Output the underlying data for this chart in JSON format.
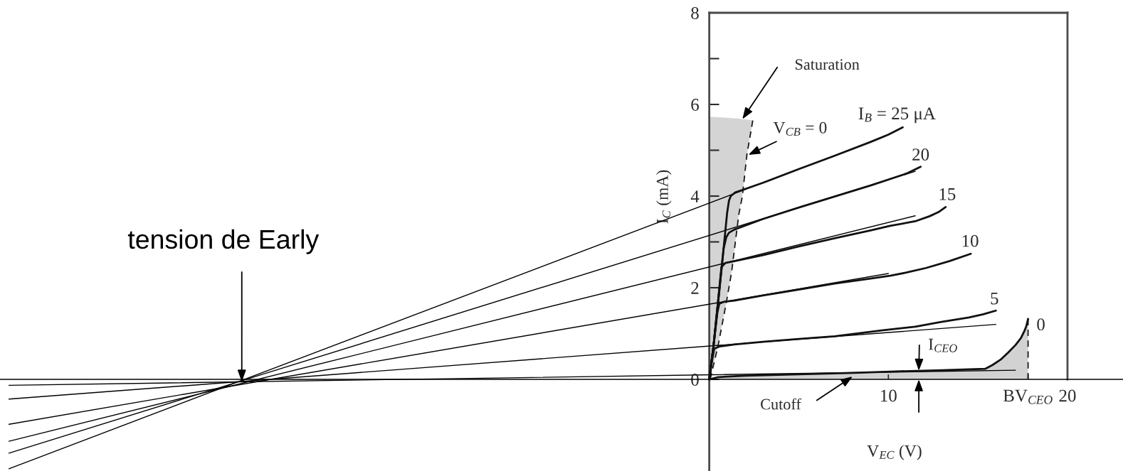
{
  "chart_data": {
    "type": "line",
    "xlabel": "V$_{EC}$ (V)",
    "ylabel": "I$_{C}$ (mA)",
    "xlim": [
      -39.6,
      23.1
    ],
    "ylim": [
      -2,
      8
    ],
    "xticks": [
      10,
      {
        "value": 17.8,
        "label": "BV$_{CEO}$"
      },
      20
    ],
    "yticks": [
      0,
      2,
      {
        "value": 3,
        "label": null
      },
      4,
      {
        "value": 5,
        "label": null
      },
      6,
      {
        "value": 7,
        "label": null
      },
      8
    ],
    "annotations": [
      {
        "text": "tension de Early",
        "x": -26.1,
        "y": -0.05
      },
      {
        "text": "Saturation",
        "x": 1.85,
        "y": 5.68
      },
      {
        "text": "V$_{CB}$ = 0",
        "x": 2.1,
        "y": 4.9
      },
      {
        "text": "I$_{CEO}$",
        "x": 11.7,
        "y": 0.19
      },
      {
        "text": "Cutoff",
        "x": 8,
        "y": 0.14
      }
    ],
    "series": [
      {
        "color": "#1a1a1a",
        "line_style": "dashed",
        "x": [
          0.05,
          0.5,
          0.95,
          1.25,
          1.65,
          1.85,
          2.1,
          2.43
        ],
        "values": [
          0,
          0.75,
          1.67,
          2.35,
          3.6,
          4.0,
          4.9,
          5.65
        ],
        "lower": [
          0,
          0.75,
          1.67,
          2.35,
          3.6,
          4.0,
          4.9,
          5.65
        ],
        "upper": [
          5.73,
          5.72,
          5.71,
          5.7,
          5.69,
          5.68,
          5.67,
          5.65
        ]
      },
      {
        "color": "#1a1a1a",
        "line_style": "dashed",
        "x": [
          17.8,
          17.8
        ],
        "values": [
          0,
          1.32
        ]
      },
      {
        "color": "#000000",
        "x": [
          -39.1,
          9.8
        ],
        "values": [
          -1.95,
          5.3
        ]
      },
      {
        "color": "#000000",
        "x": [
          -39.1,
          11.5
        ],
        "values": [
          -1.61,
          4.54
        ]
      },
      {
        "color": "#000000",
        "x": [
          -39.1,
          11.5
        ],
        "values": [
          -1.35,
          3.57
        ]
      },
      {
        "color": "#000000",
        "x": [
          -39.1,
          10.0
        ],
        "values": [
          -0.98,
          2.31
        ]
      },
      {
        "color": "#000000",
        "x": [
          -39.1,
          16.0
        ],
        "values": [
          -0.43,
          1.2
        ]
      },
      {
        "color": "#000000",
        "x": [
          -39.1,
          17.1
        ],
        "values": [
          -0.13,
          0.2
        ]
      },
      {
        "name": "I$_{B}$ = 25 μA",
        "color": "#111111",
        "x": [
          0,
          0.24,
          0.56,
          0.87,
          1.0,
          1.1,
          1.2,
          1.45,
          1.75,
          3,
          5,
          7,
          9,
          10,
          10.8
        ],
        "values": [
          0,
          0.74,
          1.93,
          3.13,
          3.64,
          3.9,
          4.0,
          4.08,
          4.12,
          4.29,
          4.59,
          4.88,
          5.18,
          5.34,
          5.5
        ]
      },
      {
        "name": "20",
        "color": "#111111",
        "x": [
          0,
          0.24,
          0.56,
          0.8,
          0.95,
          1.1,
          1.4,
          3,
          5,
          7,
          9,
          11,
          11.8
        ],
        "values": [
          0,
          0.74,
          1.93,
          2.85,
          3.1,
          3.2,
          3.27,
          3.5,
          3.75,
          3.99,
          4.23,
          4.49,
          4.64
        ]
      },
      {
        "name": "15",
        "color": "#111111",
        "x": [
          0,
          0.24,
          0.5,
          0.68,
          0.9,
          1.4,
          3,
          5,
          7,
          9,
          10.1,
          11.5,
          12.3,
          12.8,
          13.2
        ],
        "values": [
          0,
          0.74,
          1.75,
          2.45,
          2.54,
          2.58,
          2.71,
          2.9,
          3.08,
          3.25,
          3.35,
          3.45,
          3.56,
          3.65,
          3.76
        ]
      },
      {
        "name": "10",
        "color": "#111111",
        "x": [
          0,
          0.24,
          0.45,
          0.56,
          0.8,
          1.4,
          3,
          5,
          7,
          9,
          10.1,
          11,
          12.1,
          13.4,
          14.6
        ],
        "values": [
          0,
          0.74,
          1.45,
          1.65,
          1.69,
          1.72,
          1.83,
          1.96,
          2.09,
          2.2,
          2.26,
          2.33,
          2.43,
          2.58,
          2.74
        ]
      },
      {
        "name": "5",
        "color": "#111111",
        "x": [
          0,
          0.15,
          0.28,
          0.6,
          1.4,
          3,
          5,
          7,
          9.7,
          11.5,
          12.9,
          14.5,
          15.3,
          16.0
        ],
        "values": [
          0,
          0.4,
          0.67,
          0.72,
          0.76,
          0.82,
          0.88,
          0.94,
          1.07,
          1.15,
          1.25,
          1.35,
          1.42,
          1.5
        ]
      },
      {
        "type": "area",
        "name": "0",
        "color": "#111111",
        "x": [
          0,
          0.5,
          2,
          5,
          8,
          10.1,
          13,
          15.4,
          15.8,
          16.3,
          16.7,
          17.1,
          17.4,
          17.6,
          17.7,
          17.8
        ],
        "values": [
          0,
          0.05,
          0.08,
          0.11,
          0.14,
          0.17,
          0.2,
          0.23,
          0.31,
          0.44,
          0.59,
          0.75,
          0.9,
          1.06,
          1.16,
          1.32
        ]
      }
    ]
  }
}
